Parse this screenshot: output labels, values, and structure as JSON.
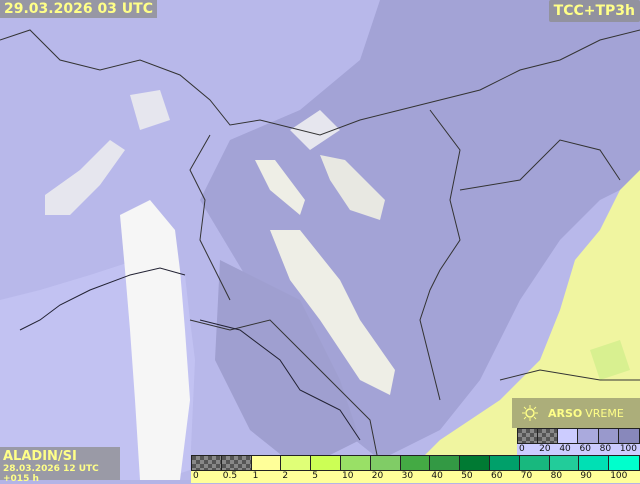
{
  "header": {
    "valid_time": "29.03.2026 03 UTC",
    "parameter": "TCC+TP3h"
  },
  "footer": {
    "model": "ALADIN/SI",
    "run": "28.03.2026 12 UTC +015 h"
  },
  "logo": {
    "brand": "ARSO",
    "product": "VREME",
    "icon": "sun-icon"
  },
  "precip_legend": {
    "labels": [
      "0",
      "0.5",
      "1",
      "2",
      "5",
      "10",
      "20",
      "30",
      "40",
      "50",
      "60",
      "70",
      "80",
      "90",
      "100"
    ],
    "colors": [
      "checker",
      "checker",
      "#ffff99",
      "#e0ff77",
      "#ccff55",
      "#99e066",
      "#80cc66",
      "#44aa44",
      "#339944",
      "#007a33",
      "#00a06a",
      "#18b87e",
      "#22cc9a",
      "#00e0b4",
      "#00ffcc"
    ]
  },
  "cloud_legend": {
    "labels": [
      "0",
      "20",
      "40",
      "60",
      "80",
      "100"
    ],
    "colors": [
      "checker",
      "checker",
      "#ccccff",
      "#aaaadd",
      "#9999cc",
      "#8888bb"
    ]
  },
  "map_colors": {
    "cloud_base": "#b4b4e6",
    "cloud_heavy": "#9c9ccc",
    "clear": "#f2f2f2",
    "sea": "#ffffff",
    "rain": "#f0f5a0"
  }
}
